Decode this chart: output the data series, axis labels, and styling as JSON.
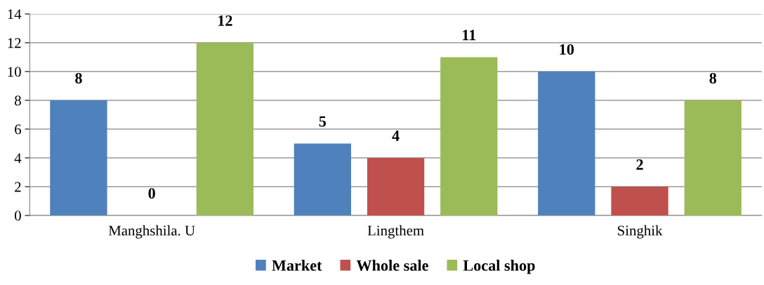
{
  "chart_data": {
    "type": "bar",
    "categories": [
      "Manghshila. U",
      "Lingthem",
      "Singhik"
    ],
    "series": [
      {
        "name": "Market",
        "color": "#4f81bd",
        "values": [
          8,
          5,
          10
        ]
      },
      {
        "name": "Whole sale",
        "color": "#c0504d",
        "values": [
          0,
          4,
          2
        ]
      },
      {
        "name": "Local shop",
        "color": "#9bbb59",
        "values": [
          12,
          11,
          8
        ]
      }
    ],
    "ylim": [
      0,
      14
    ],
    "yticks": [
      0,
      2,
      4,
      6,
      8,
      10,
      12,
      14
    ],
    "grid": "y",
    "legend": "bottom",
    "data_labels": true
  }
}
